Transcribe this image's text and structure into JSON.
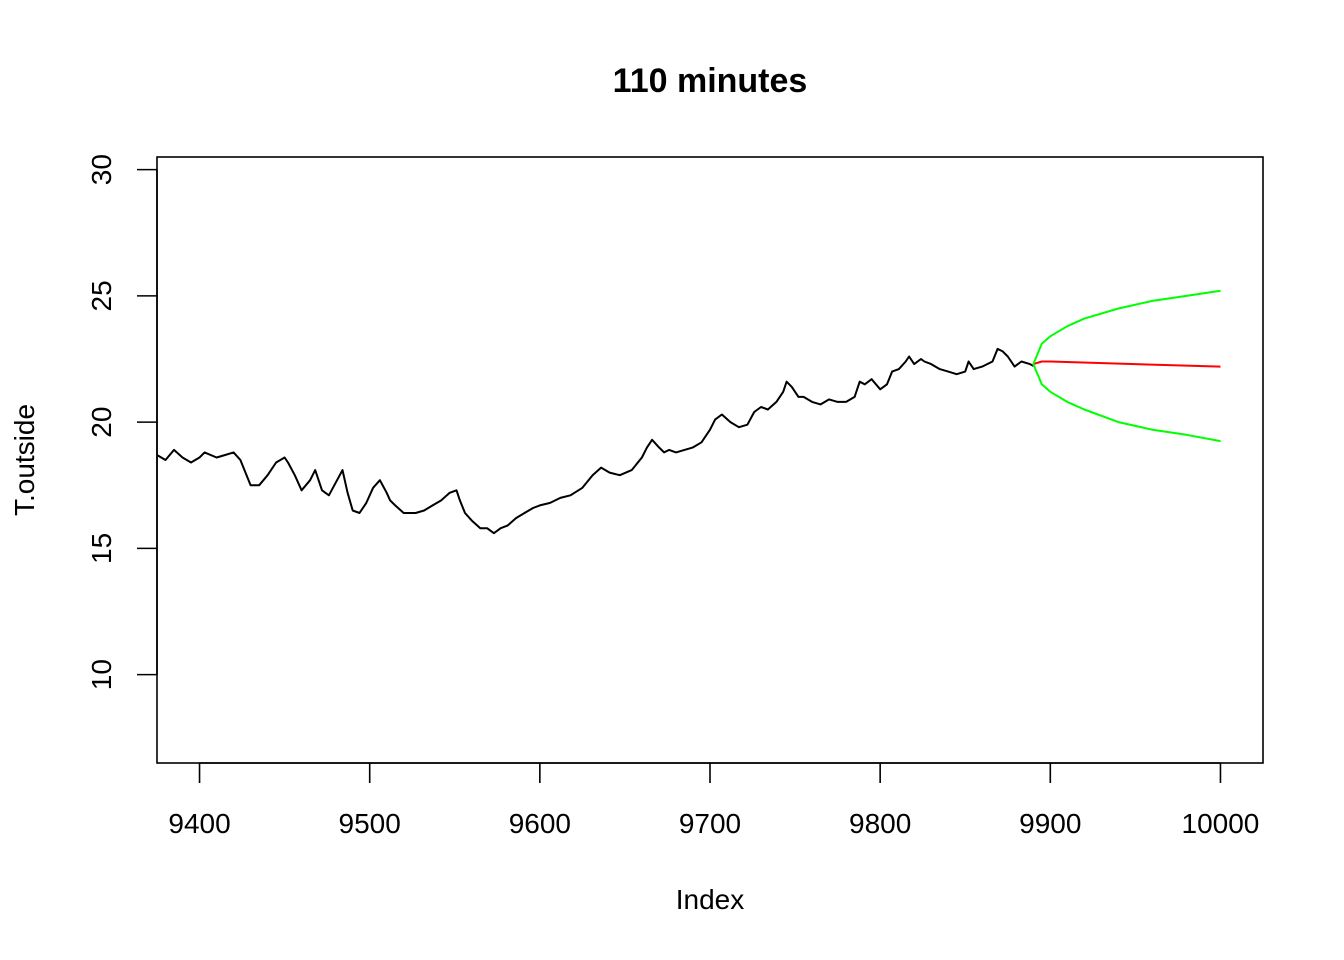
{
  "chart_data": {
    "type": "line",
    "title": "110 minutes",
    "xlabel": "Index",
    "ylabel": "T.outside",
    "xlim": [
      9375,
      10025
    ],
    "ylim": [
      6.5,
      30.5
    ],
    "x_ticks": [
      9400,
      9500,
      9600,
      9700,
      9800,
      9900,
      10000
    ],
    "x_tick_labels": [
      "9400",
      "9500",
      "9600",
      "9700",
      "9800",
      "9900",
      "10000"
    ],
    "y_ticks": [
      10,
      15,
      20,
      25,
      30
    ],
    "y_tick_labels": [
      "10",
      "15",
      "20",
      "25",
      "30"
    ],
    "grid": false,
    "legend": "none",
    "series": [
      {
        "color": "#000000",
        "x": [
          9375,
          9380,
          9385,
          9390,
          9395,
          9400,
          9403,
          9410,
          9415,
          9420,
          9424,
          9430,
          9435,
          9440,
          9445,
          9450,
          9452,
          9456,
          9460,
          9465,
          9468,
          9472,
          9476,
          9480,
          9484,
          9487,
          9490,
          9494,
          9498,
          9502,
          9506,
          9510,
          9512,
          9515,
          9520,
          9524,
          9527,
          9532,
          9537,
          9542,
          9547,
          9551,
          9553,
          9556,
          9560,
          9565,
          9569,
          9573,
          9577,
          9581,
          9586,
          9591,
          9596,
          9600,
          9606,
          9612,
          9618,
          9625,
          9631,
          9636,
          9641,
          9647,
          9654,
          9660,
          9663,
          9666,
          9670,
          9673,
          9676,
          9680,
          9685,
          9690,
          9695,
          9700,
          9703,
          9707,
          9712,
          9717,
          9722,
          9726,
          9730,
          9734,
          9739,
          9743,
          9745,
          9748,
          9752,
          9755,
          9760,
          9765,
          9770,
          9775,
          9780,
          9785,
          9788,
          9791,
          9795,
          9800,
          9804,
          9807,
          9811,
          9815,
          9817,
          9820,
          9824,
          9826,
          9830,
          9835,
          9840,
          9845,
          9850,
          9852,
          9855,
          9860,
          9866,
          9869,
          9872,
          9875,
          9879,
          9883,
          9888,
          9891
        ],
        "values": [
          18.7,
          18.5,
          18.9,
          18.6,
          18.4,
          18.6,
          18.8,
          18.6,
          18.7,
          18.8,
          18.5,
          17.5,
          17.5,
          17.9,
          18.4,
          18.6,
          18.4,
          17.9,
          17.3,
          17.7,
          18.1,
          17.3,
          17.1,
          17.6,
          18.1,
          17.2,
          16.5,
          16.4,
          16.8,
          17.4,
          17.7,
          17.2,
          16.9,
          16.7,
          16.4,
          16.4,
          16.4,
          16.5,
          16.7,
          16.9,
          17.2,
          17.3,
          16.9,
          16.4,
          16.1,
          15.8,
          15.8,
          15.6,
          15.8,
          15.9,
          16.2,
          16.4,
          16.6,
          16.7,
          16.8,
          17.0,
          17.1,
          17.4,
          17.9,
          18.2,
          18.0,
          17.9,
          18.1,
          18.6,
          19.0,
          19.3,
          19.0,
          18.8,
          18.9,
          18.8,
          18.9,
          19.0,
          19.2,
          19.7,
          20.1,
          20.3,
          20.0,
          19.8,
          19.9,
          20.4,
          20.6,
          20.5,
          20.8,
          21.2,
          21.6,
          21.4,
          21.0,
          21.0,
          20.8,
          20.7,
          20.9,
          20.8,
          20.8,
          21.0,
          21.6,
          21.5,
          21.7,
          21.3,
          21.5,
          22.0,
          22.1,
          22.4,
          22.6,
          22.3,
          22.5,
          22.4,
          22.3,
          22.1,
          22.0,
          21.9,
          22.0,
          22.4,
          22.1,
          22.2,
          22.4,
          22.9,
          22.8,
          22.6,
          22.2,
          22.4,
          22.3,
          22.2
        ]
      },
      {
        "color": "#ff0000",
        "x": [
          9890,
          9895,
          9900,
          9950,
          10000
        ],
        "values": [
          22.3,
          22.4,
          22.4,
          22.3,
          22.2
        ]
      },
      {
        "color": "#00ff00",
        "x": [
          9890,
          9895,
          9900,
          9910,
          9920,
          9940,
          9960,
          9980,
          10000
        ],
        "values": [
          22.3,
          23.1,
          23.4,
          23.8,
          24.1,
          24.5,
          24.8,
          25.0,
          25.2
        ]
      },
      {
        "color": "#00ff00",
        "x": [
          9890,
          9895,
          9900,
          9910,
          9920,
          9940,
          9960,
          9980,
          10000
        ],
        "values": [
          22.3,
          21.5,
          21.2,
          20.8,
          20.5,
          20.0,
          19.7,
          19.5,
          19.25
        ]
      }
    ]
  }
}
